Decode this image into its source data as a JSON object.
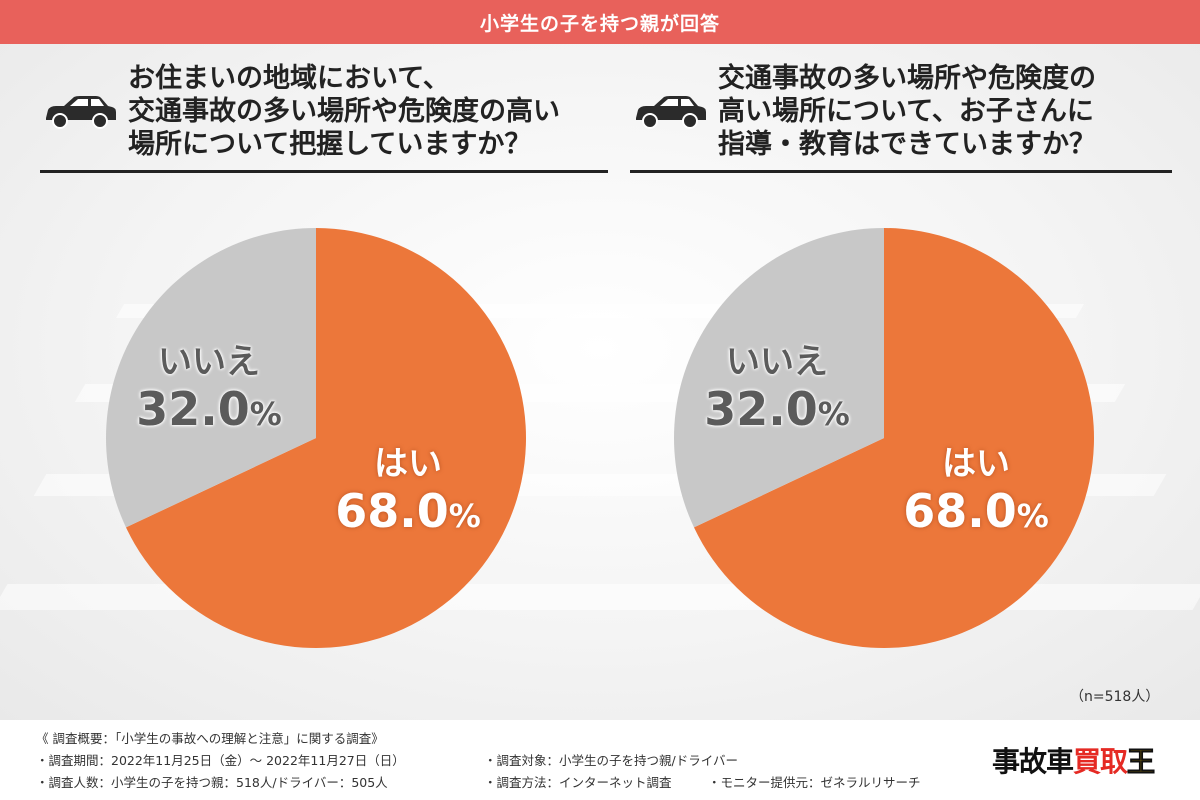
{
  "header": {
    "title": "小学生の子を持つ親が回答"
  },
  "questions": [
    {
      "lines": [
        "お住まいの地域において、",
        "交通事故の多い場所や危険度の高い",
        "場所について把握していますか？"
      ]
    },
    {
      "lines": [
        "交通事故の多い場所や危険度の",
        "高い場所について、お子さんに",
        "指導・教育はできていますか？"
      ]
    }
  ],
  "chart_data": [
    {
      "type": "pie",
      "slices": [
        {
          "label": "はい",
          "value": 68.0,
          "value_text": "68.0",
          "color": "#ec773a"
        },
        {
          "label": "いいえ",
          "value": 32.0,
          "value_text": "32.0",
          "color": "#c8c8c8"
        }
      ],
      "percent_sign": "%"
    },
    {
      "type": "pie",
      "slices": [
        {
          "label": "はい",
          "value": 68.0,
          "value_text": "68.0",
          "color": "#ec773a"
        },
        {
          "label": "いいえ",
          "value": 32.0,
          "value_text": "32.0",
          "color": "#c8c8c8"
        }
      ],
      "percent_sign": "%"
    }
  ],
  "sample_note": "（n=518人）",
  "footer": {
    "summary": "《 調査概要：「小学生の事故への理解と注意」に関する調査》",
    "period": "・調査期間：2022年11月25日（金）～ 2022年11月27日（日）",
    "target": "・調査対象：小学生の子を持つ親/ドライバー",
    "count": "・調査人数：小学生の子を持つ親：518人/ドライバー：505人",
    "method": "・調査方法：インターネット調査",
    "provider": "・モニター提供元：ゼネラルリサーチ"
  },
  "logo": {
    "part1": "事故車",
    "part2": "買取",
    "part3": "王"
  },
  "colors": {
    "header": "#e8615b",
    "yes": "#ec773a",
    "no": "#c8c8c8"
  },
  "icons": {
    "question": "car-icon"
  }
}
